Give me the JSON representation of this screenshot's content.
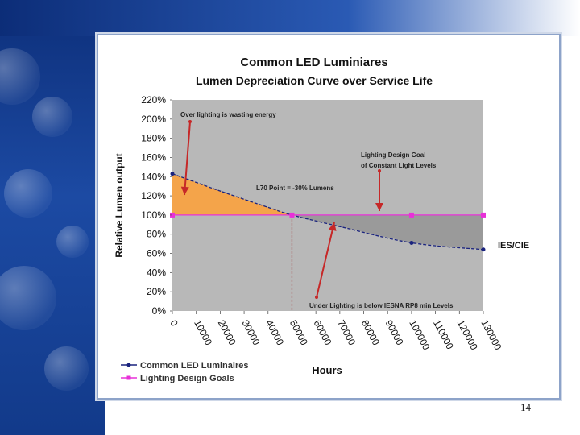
{
  "slide": {
    "page_number": "14"
  },
  "chart_data": {
    "type": "line",
    "title": "Common LED Luminiares",
    "subtitle": "Lumen Depreciation Curve over Service Life",
    "xlabel": "Hours",
    "ylabel": "Relative Lumen output",
    "xlim": [
      0,
      130000
    ],
    "ylim": [
      0,
      220
    ],
    "x_ticks": [
      "0",
      "10000",
      "20000",
      "30000",
      "40000",
      "50000",
      "60000",
      "70000",
      "80000",
      "90000",
      "100000",
      "110000",
      "120000",
      "130000"
    ],
    "y_ticks": [
      "0%",
      "20%",
      "40%",
      "60%",
      "80%",
      "100%",
      "120%",
      "140%",
      "160%",
      "180%",
      "200%",
      "220%"
    ],
    "series": [
      {
        "name": "Common LED Luminaires",
        "color": "#1a237e",
        "x": [
          0,
          20000,
          40000,
          50000,
          70000,
          100000,
          130000
        ],
        "y": [
          143,
          125,
          108,
          100,
          88,
          71,
          64
        ]
      },
      {
        "name": "Lighting Design Goals",
        "color": "#e830d8",
        "x": [
          0,
          50000,
          100000,
          130000
        ],
        "y": [
          100,
          100,
          100,
          100
        ]
      }
    ],
    "annotations": {
      "over_lighting": "Over lighting is wasting energy",
      "design_goal_line1": "Lighting Design Goal",
      "design_goal_line2": "of Constant Light Levels",
      "l70": "L70 Point = -30% Lumens",
      "under_lighting": "Under Lighting is below IESNA RP8 min Levels",
      "source": "IES/CIE"
    },
    "colors": {
      "plot_bg": "#b8b8b8",
      "over_fill": "#f4a44a",
      "under_fill": "#9a9a9a",
      "arrow": "#c62828",
      "l70_line": "#a52a2a"
    }
  }
}
